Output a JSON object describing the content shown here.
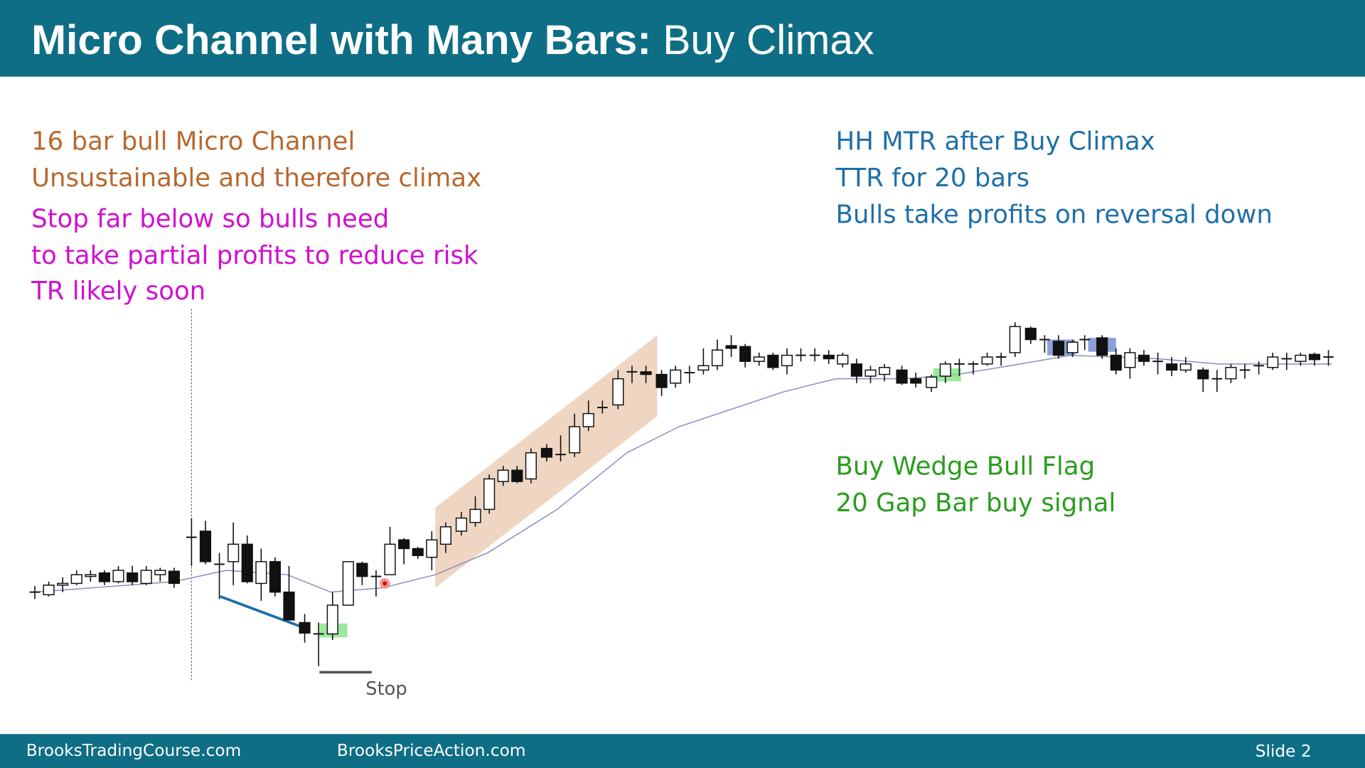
{
  "header": {
    "title_bold": "Micro Channel with Many Bars:",
    "title_rest": "Buy Climax"
  },
  "notes_left": {
    "brown": [
      "16 bar bull Micro Channel",
      "Unsustainable and therefore climax"
    ],
    "magenta": [
      "Stop far below so bulls need",
      "to take partial profits to reduce risk",
      "TR likely soon"
    ]
  },
  "notes_right": {
    "blue": [
      "HH MTR after Buy Climax",
      "TTR for 20 bars",
      "Bulls take profits on reversal down"
    ],
    "green": [
      "Buy Wedge Bull Flag",
      "20 Gap Bar buy signal"
    ]
  },
  "chart_labels": {
    "stop": "Stop"
  },
  "footer": {
    "site1": "BrooksTradingCourse.com",
    "site2": "BrooksPriceAction.com",
    "slide": "Slide  2"
  }
}
